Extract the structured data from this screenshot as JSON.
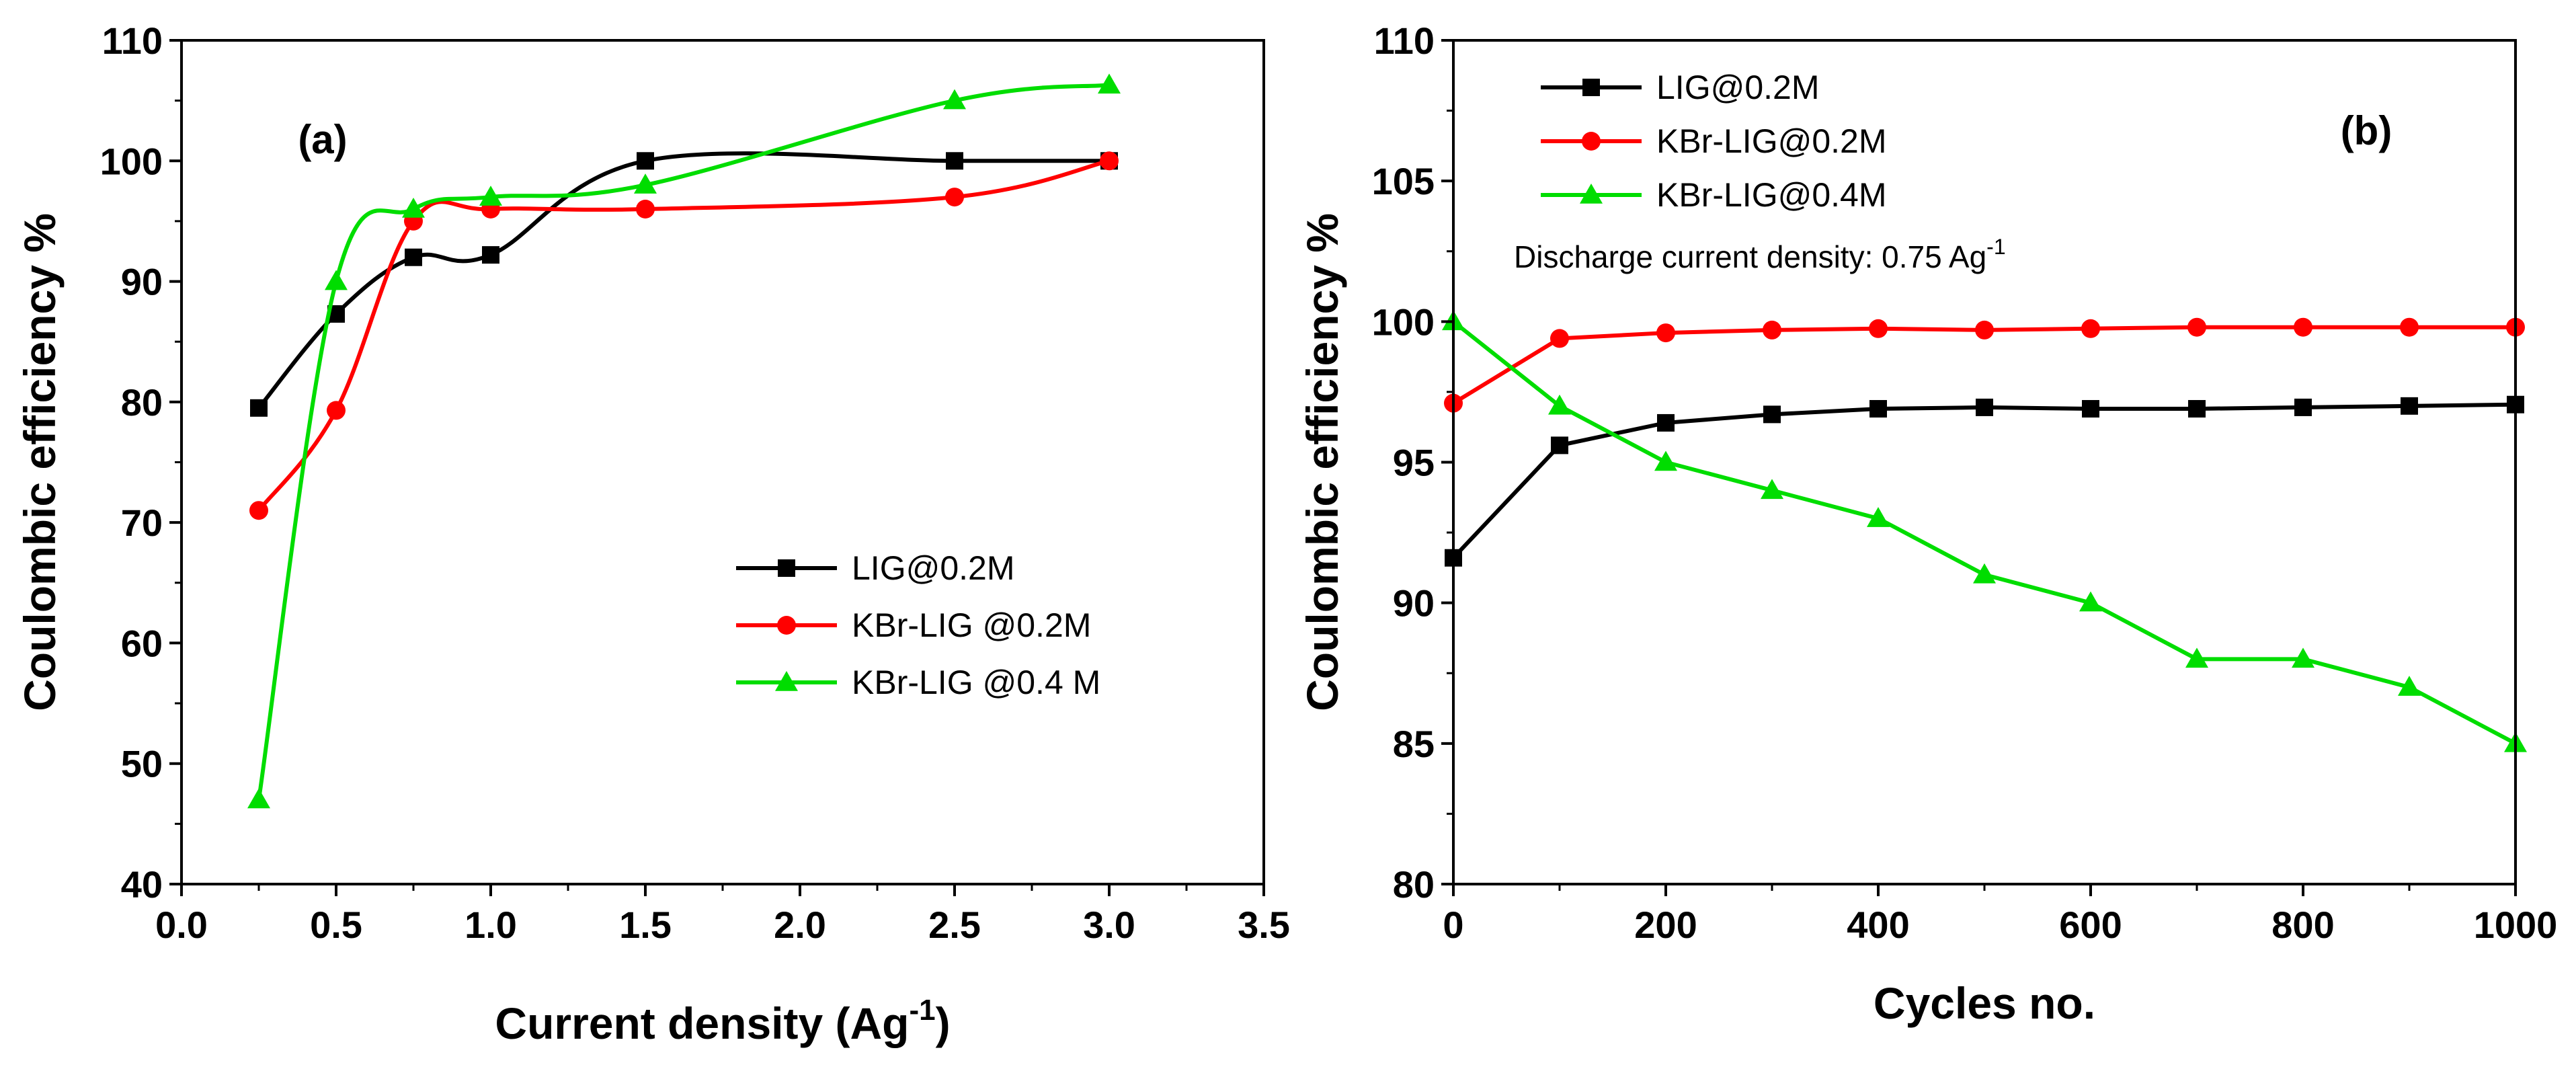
{
  "chart_data": [
    {
      "panel": "a",
      "type": "line",
      "panel_label": "(a)",
      "xlabel": "Current density (Ag",
      "xlabel_sup": "-1",
      "xlabel_end": ")",
      "ylabel": "Coulombic efficiency %",
      "xlim": [
        0.0,
        3.5
      ],
      "ylim": [
        40,
        110
      ],
      "xticks": [
        0.0,
        0.5,
        1.0,
        1.5,
        2.0,
        2.5,
        3.0,
        3.5
      ],
      "xtick_labels": [
        "0.0",
        "0.5",
        "1.0",
        "1.5",
        "2.0",
        "2.5",
        "3.0",
        "3.5"
      ],
      "yticks": [
        40,
        50,
        60,
        70,
        80,
        90,
        100,
        110
      ],
      "ytick_labels": [
        "40",
        "50",
        "60",
        "70",
        "80",
        "90",
        "100",
        "110"
      ],
      "legend_position": "lower-right",
      "series": [
        {
          "name": "LIG@0.2M",
          "color": "#000000",
          "marker": "square",
          "x": [
            0.25,
            0.5,
            0.75,
            1.0,
            1.5,
            2.5,
            3.0
          ],
          "y": [
            79.5,
            87.3,
            92.0,
            92.2,
            100.0,
            100.0,
            100.0
          ]
        },
        {
          "name": "KBr-LIG @0.2M",
          "color": "#ff0000",
          "marker": "circle",
          "x": [
            0.25,
            0.5,
            0.75,
            1.0,
            1.5,
            2.5,
            3.0
          ],
          "y": [
            71.0,
            79.3,
            95.0,
            96.0,
            96.0,
            97.0,
            100.0
          ]
        },
        {
          "name": "KBr-LIG @0.4 M",
          "color": "#00dd00",
          "marker": "triangle",
          "x": [
            0.25,
            0.5,
            0.75,
            1.0,
            1.5,
            2.5,
            3.0
          ],
          "y": [
            47.0,
            90.0,
            96.0,
            97.0,
            98.0,
            105.0,
            106.3
          ]
        }
      ]
    },
    {
      "panel": "b",
      "type": "line",
      "panel_label": "(b)",
      "xlabel": "Cycles no.",
      "ylabel": "Coulombic efficiency %",
      "xlim": [
        0,
        1000
      ],
      "ylim": [
        80,
        110
      ],
      "xticks": [
        0,
        200,
        400,
        600,
        800,
        1000
      ],
      "xtick_labels": [
        "0",
        "200",
        "400",
        "600",
        "800",
        "1000"
      ],
      "yticks": [
        80,
        85,
        90,
        95,
        100,
        105,
        110
      ],
      "ytick_labels": [
        "80",
        "85",
        "90",
        "95",
        "100",
        "105",
        "110"
      ],
      "legend_position": "top-left",
      "annotation": "Discharge current density: 0.75 Ag",
      "annotation_sup": "-1",
      "series": [
        {
          "name": "LIG@0.2M",
          "color": "#000000",
          "marker": "square",
          "x": [
            0,
            100,
            200,
            300,
            400,
            500,
            600,
            700,
            800,
            900,
            1000
          ],
          "y": [
            91.6,
            95.6,
            96.4,
            96.7,
            96.9,
            96.95,
            96.9,
            96.9,
            96.95,
            97.0,
            97.05
          ]
        },
        {
          "name": "KBr-LIG@0.2M",
          "color": "#ff0000",
          "marker": "circle",
          "x": [
            0,
            100,
            200,
            300,
            400,
            500,
            600,
            700,
            800,
            900,
            1000
          ],
          "y": [
            97.1,
            99.4,
            99.6,
            99.7,
            99.75,
            99.7,
            99.75,
            99.8,
            99.8,
            99.8,
            99.8
          ]
        },
        {
          "name": "KBr-LIG@0.4M",
          "color": "#00dd00",
          "marker": "triangle",
          "x": [
            0,
            100,
            200,
            300,
            400,
            500,
            600,
            700,
            800,
            900,
            1000
          ],
          "y": [
            100.0,
            97.0,
            95.0,
            94.0,
            93.0,
            91.0,
            90.0,
            88.0,
            88.0,
            87.0,
            85.0
          ]
        }
      ]
    }
  ]
}
